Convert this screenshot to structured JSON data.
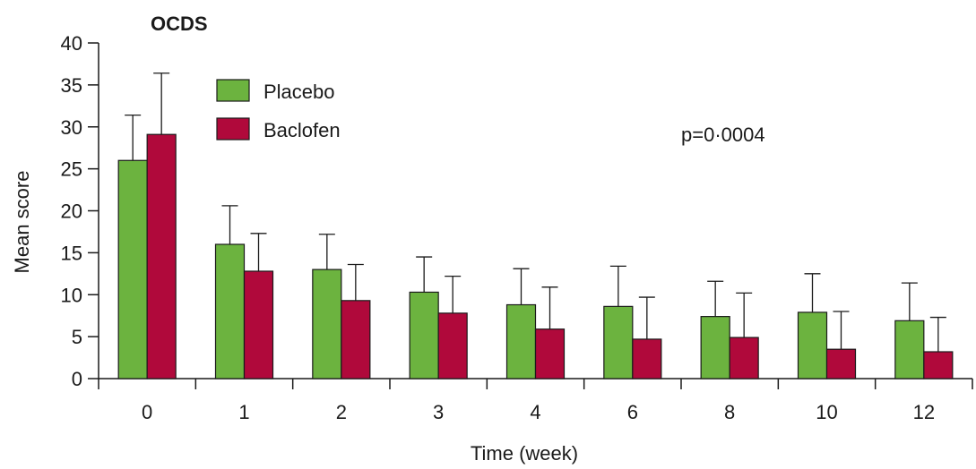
{
  "chart_data": {
    "type": "bar",
    "title": "OCDS",
    "xlabel": "Time (week)",
    "ylabel": "Mean score",
    "ylim": [
      0,
      40
    ],
    "yticks": [
      0,
      5,
      10,
      15,
      20,
      25,
      30,
      35,
      40
    ],
    "categories": [
      "0",
      "1",
      "2",
      "3",
      "4",
      "6",
      "8",
      "10",
      "12"
    ],
    "series": [
      {
        "name": "Placebo",
        "color": "#6cb33f",
        "values": [
          26.0,
          16.0,
          13.0,
          10.3,
          8.8,
          8.6,
          7.4,
          7.9,
          6.9
        ],
        "error_upper": [
          31.4,
          20.6,
          17.2,
          14.5,
          13.1,
          13.4,
          11.6,
          12.5,
          11.4
        ]
      },
      {
        "name": "Baclofen",
        "color": "#b0093b",
        "values": [
          29.1,
          12.8,
          9.3,
          7.8,
          5.9,
          4.7,
          4.9,
          3.5,
          3.2
        ],
        "error_upper": [
          36.4,
          17.3,
          13.6,
          12.2,
          10.9,
          9.7,
          10.2,
          8.0,
          7.3
        ]
      }
    ],
    "legend_position": "top-left",
    "annotations": [
      "p=0·0004"
    ],
    "grid": false
  }
}
